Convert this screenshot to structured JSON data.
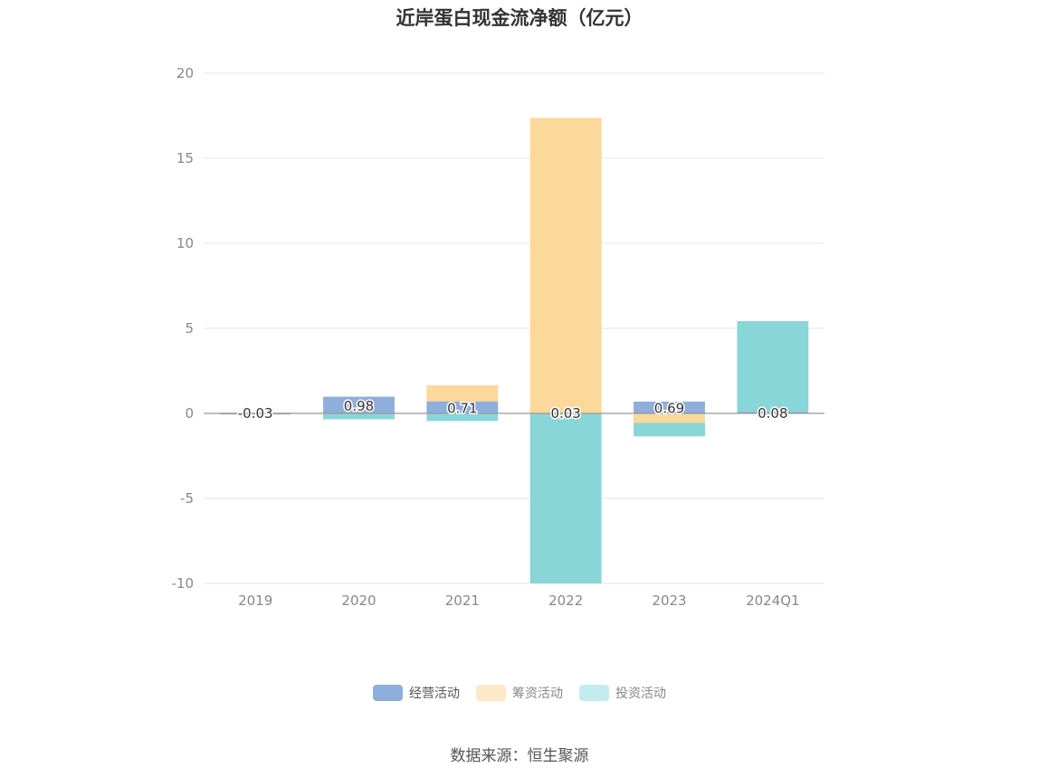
{
  "title": "近岸蛋白现金流净额（亿元）",
  "source": "数据来源：恒生聚源",
  "chart_data": {
    "type": "bar",
    "stacked": true,
    "categories": [
      "2019",
      "2020",
      "2021",
      "2022",
      "2023",
      "2024Q1"
    ],
    "ylim": [
      -10,
      20
    ],
    "yticks": [
      20,
      15,
      10,
      5,
      0,
      -5,
      -10
    ],
    "grid": true,
    "legend_position": "bottom",
    "series": [
      {
        "name": "经营活动",
        "color": "#8eaedb",
        "values": [
          -0.03,
          0.98,
          0.71,
          0.03,
          0.69,
          0.08
        ]
      },
      {
        "name": "筹资活动",
        "color": "#fdd89b",
        "values": [
          0.05,
          0.0,
          0.95,
          17.35,
          -0.55,
          0.0
        ]
      },
      {
        "name": "投资活动",
        "color": "#89d6d9",
        "values": [
          0.0,
          -0.35,
          -0.45,
          -10.0,
          -0.8,
          5.35
        ]
      }
    ],
    "data_labels": [
      "-0.03",
      "0.98",
      "0.71",
      "0.03",
      "0.69",
      "0.08"
    ]
  },
  "legend": [
    {
      "label": "经营活动",
      "color": "#8eaedb"
    },
    {
      "label": "筹资活动",
      "color": "#fde8c8"
    },
    {
      "label": "投资活动",
      "color": "#c4ecee"
    }
  ]
}
